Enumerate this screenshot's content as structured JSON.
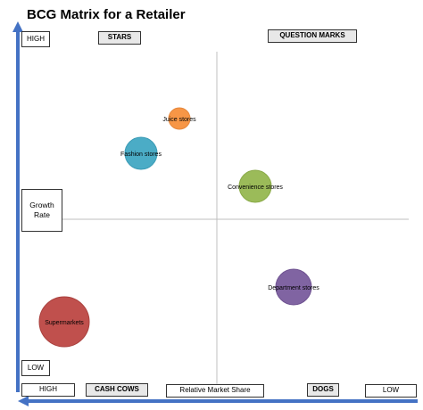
{
  "title": "BCG Matrix for a Retailer",
  "quadrants": {
    "top_left": "STARS",
    "top_right": "QUESTION MARKS",
    "bottom_left": "CASH COWS",
    "bottom_right": "DOGS"
  },
  "y_axis": {
    "label": "Growth Rate",
    "high": "HIGH",
    "low": "LOW"
  },
  "x_axis": {
    "label": "Relative Market Share",
    "high": "HIGH",
    "low": "LOW"
  },
  "colors": {
    "axis": "#4472c4",
    "divider": "#bfbfbf"
  },
  "bubbles": [
    {
      "label": "Juice stores",
      "color": "#f79646",
      "stroke": "#e6873b"
    },
    {
      "label": "Fashion stores",
      "color": "#4bacc6",
      "stroke": "#3a9bb5"
    },
    {
      "label": "Convenience stores",
      "color": "#9bbb59",
      "stroke": "#8aaa48"
    },
    {
      "label": "Department stores",
      "color": "#8064a2",
      "stroke": "#6f5391"
    },
    {
      "label": "Supermarkets",
      "color": "#c0504d",
      "stroke": "#a9403d"
    }
  ]
}
